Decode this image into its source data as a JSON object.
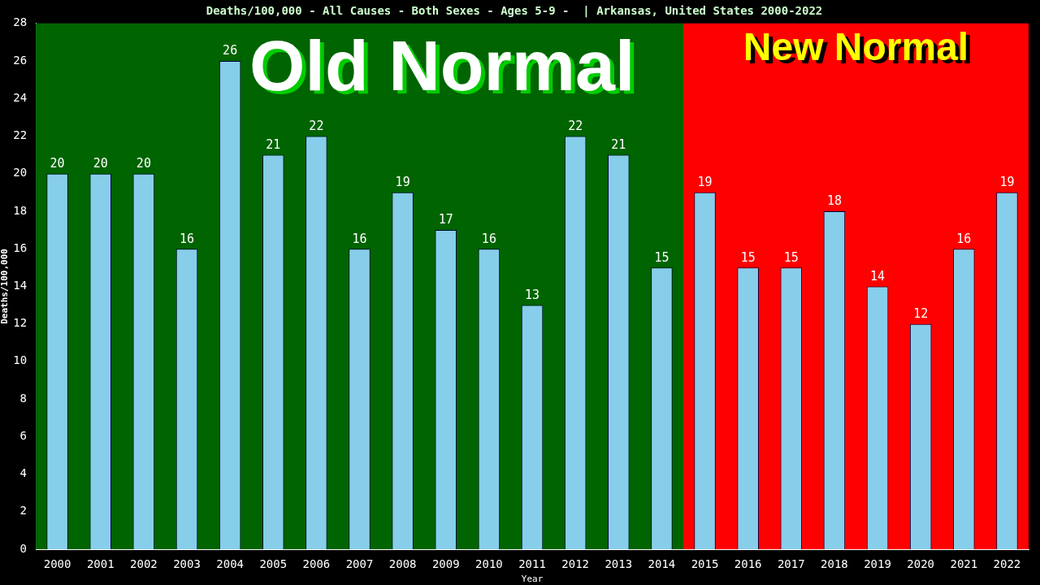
{
  "chart_data": {
    "type": "bar",
    "title": "Deaths/100,000 - All Causes - Both Sexes - Ages 5-9 -  | Arkansas, United States 2000-2022",
    "xlabel": "Year",
    "ylabel": "Deaths/100,000",
    "categories": [
      "2000",
      "2001",
      "2002",
      "2003",
      "2004",
      "2005",
      "2006",
      "2007",
      "2008",
      "2009",
      "2010",
      "2011",
      "2012",
      "2013",
      "2014",
      "2015",
      "2016",
      "2017",
      "2018",
      "2019",
      "2020",
      "2021",
      "2022"
    ],
    "values": [
      20,
      20,
      20,
      16,
      26,
      21,
      22,
      16,
      19,
      17,
      16,
      13,
      22,
      21,
      15,
      19,
      15,
      15,
      18,
      14,
      12,
      16,
      19
    ],
    "color": "#87ceeb",
    "data_labels": true,
    "grid": false,
    "legend": false,
    "ylim": [
      0,
      28
    ],
    "yticks": [
      0,
      2,
      4,
      6,
      8,
      10,
      12,
      14,
      16,
      18,
      20,
      22,
      24,
      26,
      28
    ],
    "bands": [
      {
        "axis": "x",
        "from": "2000",
        "to": "2014",
        "label": "Old Normal",
        "color": "#006400"
      },
      {
        "axis": "x",
        "from": "2015",
        "to": "2022",
        "label": "New Normal",
        "color": "#ff0000"
      }
    ]
  }
}
